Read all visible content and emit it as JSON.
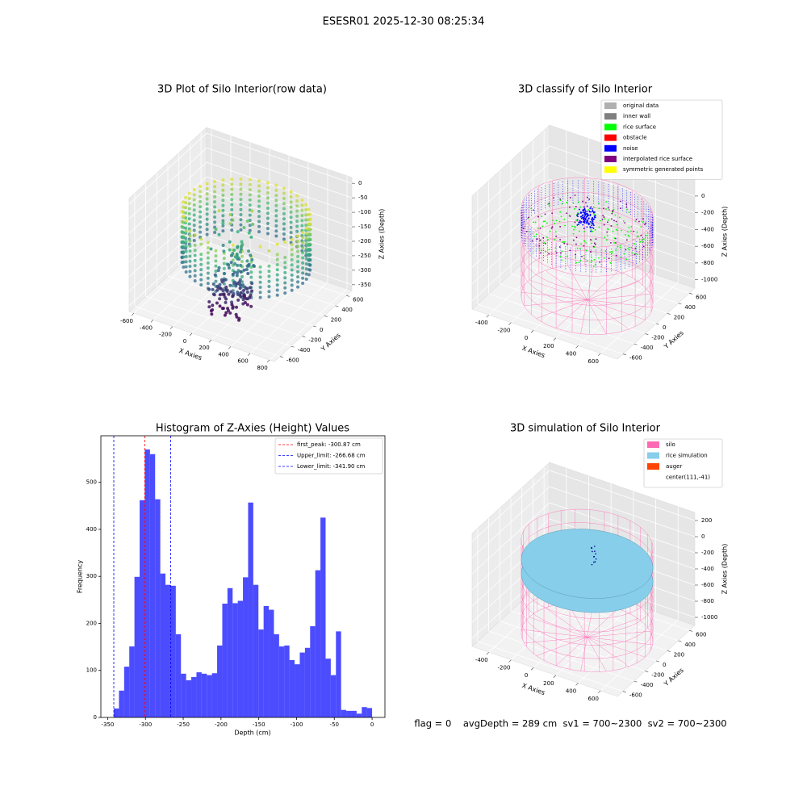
{
  "title": "ESESR01 2025-12-30 08:25:34",
  "footer": "flag = 0    avgDepth = 289 cm  sv1 = 700~2300  sv2 = 700~2300",
  "chart_data": [
    {
      "type": "scatter3d",
      "title": "3D Plot of Silo Interior(row data)",
      "x_label": "X Axies",
      "y_label": "Y Axies",
      "z_label": "Z Axies (Depth)",
      "xlim": [
        -650,
        850
      ],
      "ylim": [
        -700,
        700
      ],
      "zlim": [
        -370,
        20
      ],
      "xticks": [
        -600,
        -400,
        -200,
        0,
        200,
        400,
        600,
        800
      ],
      "yticks": [
        -600,
        -400,
        -200,
        0,
        200,
        400,
        600
      ],
      "zticks": [
        0,
        -50,
        -100,
        -150,
        -200,
        -250,
        -300,
        -350
      ]
    },
    {
      "type": "classify3d",
      "title": "3D classify of Silo Interior",
      "x_label": "X Axies",
      "y_label": "Y Axies",
      "z_label": "Z Axies (Depth)",
      "xlim": [
        -550,
        750
      ],
      "ylim": [
        -700,
        700
      ],
      "zlim": [
        -1100,
        250
      ],
      "xticks": [
        -400,
        -200,
        0,
        200,
        400,
        600
      ],
      "yticks": [
        -600,
        -400,
        -200,
        0,
        200,
        400,
        600
      ],
      "zticks": [
        0,
        -200,
        -400,
        -600,
        -800,
        -1000
      ],
      "legend": [
        {
          "name": "original data",
          "color": "#b0b0b0"
        },
        {
          "name": "inner wall",
          "color": "#808080"
        },
        {
          "name": "rice surface",
          "color": "#00ff00"
        },
        {
          "name": "obstacle",
          "color": "#ff0000"
        },
        {
          "name": "noise",
          "color": "#0000ff"
        },
        {
          "name": "interpolated rice surface",
          "color": "#800080"
        },
        {
          "name": "symmetric generated points",
          "color": "#ffff00"
        }
      ]
    },
    {
      "type": "histogram",
      "title": "Histogram of Z-Axies (Height) Values",
      "x_label": "Depth (cm)",
      "y_label": "Frequency",
      "color": "#0000ff",
      "alpha": 0.7,
      "xlim": [
        -359,
        17
      ],
      "ylim": [
        0,
        599
      ],
      "xticks": [
        -350,
        -300,
        -250,
        -200,
        -150,
        -100,
        -50,
        0
      ],
      "yticks": [
        0,
        100,
        200,
        300,
        400,
        500
      ],
      "bins": [
        -341.9,
        -335.06,
        -328.22,
        -321.39,
        -314.55,
        -307.71,
        -300.87,
        -294.03,
        -287.2,
        -280.36,
        -273.52,
        -266.68,
        -259.84,
        -253.01,
        -246.17,
        -239.33,
        -232.49,
        -225.65,
        -218.82,
        -211.98,
        -205.14,
        -198.3,
        -191.46,
        -184.63,
        -177.79,
        -170.95,
        -164.11,
        -157.27,
        -150.44,
        -143.6,
        -136.76,
        -129.92,
        -123.08,
        -116.25,
        -109.41,
        -102.57,
        -95.73,
        -88.89,
        -82.06,
        -75.22,
        -68.38,
        -61.54,
        -54.7,
        -47.87,
        -41.03,
        -34.19,
        -27.35,
        -20.51,
        -13.68,
        -6.84,
        0.0
      ],
      "values": [
        19,
        57,
        108,
        151,
        299,
        462,
        570,
        560,
        464,
        306,
        282,
        280,
        177,
        93,
        79,
        86,
        96,
        93,
        90,
        94,
        153,
        242,
        275,
        243,
        248,
        298,
        457,
        282,
        187,
        237,
        229,
        177,
        151,
        153,
        122,
        113,
        138,
        148,
        194,
        313,
        425,
        125,
        90,
        183,
        16,
        14,
        14,
        8,
        22,
        20
      ],
      "lines": [
        {
          "name": "first_peak: -300.87 cm",
          "value": -300.87,
          "color": "#ff0000"
        },
        {
          "name": "Upper_limit: -266.68 cm",
          "value": -266.68,
          "color": "#0000ff"
        },
        {
          "name": "Lower_limit: -341.90 cm",
          "value": -341.9,
          "color": "#0000ff"
        }
      ]
    },
    {
      "type": "simulation3d",
      "title": "3D simulation of Silo Interior",
      "x_label": "X Axies",
      "y_label": "Y Axies",
      "z_label": "Z Axies (Depth)",
      "xlim": [
        -550,
        750
      ],
      "ylim": [
        -700,
        700
      ],
      "zlim": [
        -1100,
        300
      ],
      "xticks": [
        -400,
        -200,
        0,
        200,
        400,
        600
      ],
      "yticks": [
        -600,
        -400,
        -200,
        0,
        200,
        400,
        600
      ],
      "zticks": [
        200,
        0,
        -200,
        -400,
        -600,
        -800,
        -1000
      ],
      "legend": [
        {
          "name": "silo",
          "color": "#ff69b4"
        },
        {
          "name": "rice simulation",
          "color": "#87ceeb"
        },
        {
          "name": "auger",
          "color": "#ff4500"
        },
        {
          "name": "center(111,-41)"
        }
      ]
    }
  ]
}
